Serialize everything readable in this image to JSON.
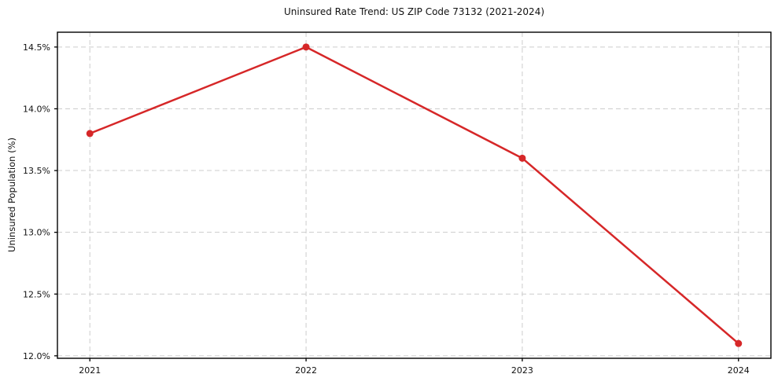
{
  "chart_data": {
    "type": "line",
    "title": "Uninsured Rate Trend: US ZIP Code 73132 (2021-2024)",
    "xlabel": "",
    "ylabel": "Uninsured Population (%)",
    "x": [
      2021,
      2022,
      2023,
      2024
    ],
    "values": [
      13.8,
      14.5,
      13.6,
      12.1
    ],
    "xticks": [
      2021,
      2022,
      2023,
      2024
    ],
    "xtick_labels": [
      "2021",
      "2022",
      "2023",
      "2024"
    ],
    "yticks": [
      12.0,
      12.5,
      13.0,
      13.5,
      14.0,
      14.5
    ],
    "ytick_labels": [
      "12.0%",
      "12.5%",
      "13.0%",
      "13.5%",
      "14.0%",
      "14.5%"
    ],
    "xlim": [
      2020.85,
      2024.15
    ],
    "ylim": [
      11.98,
      14.62
    ],
    "grid": true,
    "legend": "none",
    "line_color": "#d62728",
    "marker_color": "#d62728",
    "grid_color": "#cccccc",
    "spine_color": "#000000",
    "text_color": "#111111",
    "line_width": 2.5,
    "marker_radius": 4.5
  }
}
